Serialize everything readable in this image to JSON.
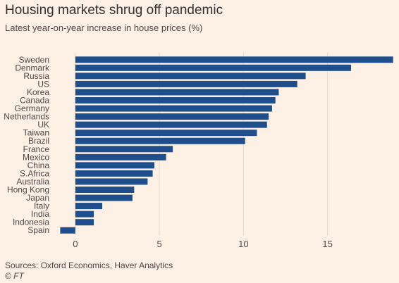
{
  "header": {
    "title": "Housing markets shrug off pandemic",
    "subtitle": "Latest year-on-year increase in house prices (%)"
  },
  "footer": {
    "source": "Sources: Oxford Economics, Haver Analytics",
    "credit": "© FT"
  },
  "colors": {
    "bar": "#1f4e8c",
    "background": "#fdf0e5",
    "grid": "#e3d8cf",
    "text": "#4d4845"
  },
  "chart_data": {
    "type": "bar",
    "orientation": "horizontal",
    "title": "Housing markets shrug off pandemic",
    "subtitle": "Latest year-on-year increase in house prices (%)",
    "xlabel": "",
    "ylabel": "",
    "categories": [
      "Sweden",
      "Denmark",
      "Russia",
      "US",
      "Korea",
      "Canada",
      "Germany",
      "Netherlands",
      "UK",
      "Taiwan",
      "Brazil",
      "France",
      "Mexico",
      "China",
      "S.Africa",
      "Australia",
      "Hong Kong",
      "Japan",
      "Italy",
      "India",
      "Indonesia",
      "Spain"
    ],
    "values": [
      18.9,
      16.4,
      13.7,
      13.2,
      12.1,
      11.9,
      11.7,
      11.5,
      11.4,
      10.8,
      10.1,
      5.8,
      5.4,
      4.7,
      4.6,
      4.3,
      3.5,
      3.4,
      1.6,
      1.1,
      1.1,
      -0.9
    ],
    "xlim": [
      -1,
      19
    ],
    "xticks": [
      0,
      5,
      10,
      15
    ],
    "grid": true,
    "legend": "none"
  }
}
